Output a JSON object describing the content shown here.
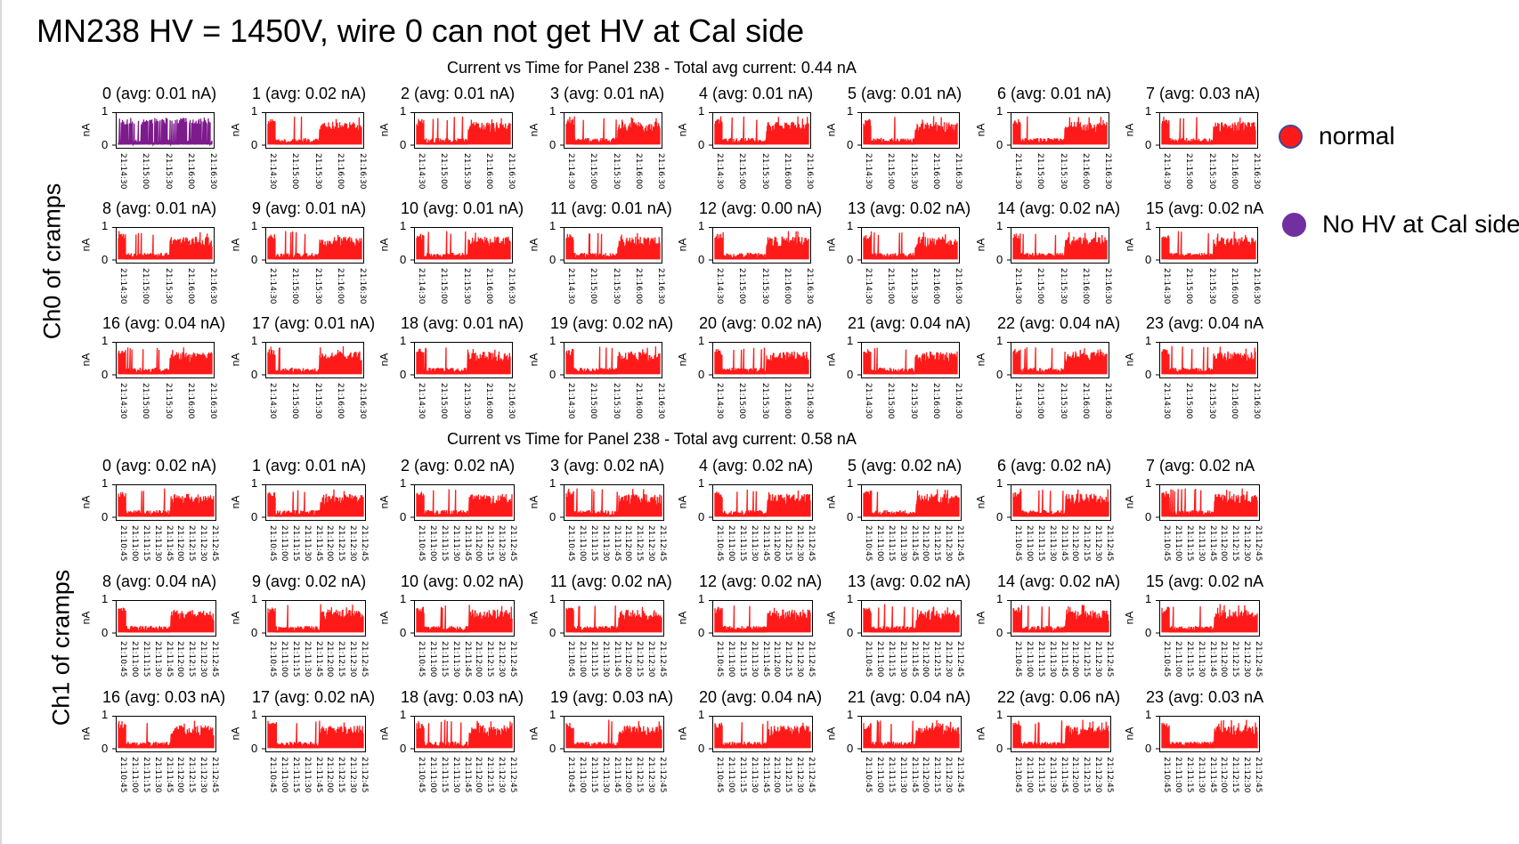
{
  "slide": {
    "title": "MN238 HV = 1450V, wire 0 can not get HV at Cal side"
  },
  "side_labels": {
    "ch0": "Ch0 of cramps",
    "ch1": "Ch1 of cramps"
  },
  "legend": {
    "items": [
      {
        "label": "normal",
        "color": "#ff1a1a",
        "border": "#3a4a9a"
      },
      {
        "label": "No HV at Cal side",
        "color": "#7030a0",
        "border": "#7030a0"
      }
    ]
  },
  "colors": {
    "normal": "#ff1a1a",
    "no_hv": "#7d1a8c"
  },
  "chart_data": [
    {
      "type": "line",
      "title": "Current vs Time for Panel 238 - Total avg current: 0.44 nA",
      "ylabel": "nA",
      "yticks": [
        "0",
        "1"
      ],
      "ylim": [
        0,
        1
      ],
      "xticks": [
        "21:14:30",
        "21:15:00",
        "21:15:30",
        "21:16:00",
        "21:16:30"
      ],
      "subplots": [
        {
          "wire": 0,
          "title": "0 (avg: 0.01 nA)",
          "status": "No HV at Cal side"
        },
        {
          "wire": 1,
          "title": "1 (avg: 0.02 nA)",
          "status": "normal"
        },
        {
          "wire": 2,
          "title": "2 (avg: 0.01 nA)",
          "status": "normal"
        },
        {
          "wire": 3,
          "title": "3 (avg: 0.01 nA)",
          "status": "normal"
        },
        {
          "wire": 4,
          "title": "4 (avg: 0.01 nA)",
          "status": "normal"
        },
        {
          "wire": 5,
          "title": "5 (avg: 0.01 nA)",
          "status": "normal"
        },
        {
          "wire": 6,
          "title": "6 (avg: 0.01 nA)",
          "status": "normal"
        },
        {
          "wire": 7,
          "title": "7 (avg: 0.03 nA)",
          "status": "normal"
        },
        {
          "wire": 8,
          "title": "8 (avg: 0.01 nA)",
          "status": "normal"
        },
        {
          "wire": 9,
          "title": "9 (avg: 0.01 nA)",
          "status": "normal"
        },
        {
          "wire": 10,
          "title": "10 (avg: 0.01 nA)",
          "status": "normal"
        },
        {
          "wire": 11,
          "title": "11 (avg: 0.01 nA)",
          "status": "normal"
        },
        {
          "wire": 12,
          "title": "12 (avg: 0.00 nA)",
          "status": "normal"
        },
        {
          "wire": 13,
          "title": "13 (avg: 0.02 nA)",
          "status": "normal"
        },
        {
          "wire": 14,
          "title": "14 (avg: 0.02 nA)",
          "status": "normal"
        },
        {
          "wire": 15,
          "title": "15 (avg: 0.02 nA",
          "status": "normal"
        },
        {
          "wire": 16,
          "title": "16 (avg: 0.04 nA)",
          "status": "normal"
        },
        {
          "wire": 17,
          "title": "17 (avg: 0.01 nA)",
          "status": "normal"
        },
        {
          "wire": 18,
          "title": "18 (avg: 0.01 nA)",
          "status": "normal"
        },
        {
          "wire": 19,
          "title": "19 (avg: 0.02 nA)",
          "status": "normal"
        },
        {
          "wire": 20,
          "title": "20 (avg: 0.02 nA)",
          "status": "normal"
        },
        {
          "wire": 21,
          "title": "21 (avg: 0.04 nA)",
          "status": "normal"
        },
        {
          "wire": 22,
          "title": "22 (avg: 0.04 nA)",
          "status": "normal"
        },
        {
          "wire": 23,
          "title": "23 (avg: 0.04 nA",
          "status": "normal"
        }
      ]
    },
    {
      "type": "line",
      "title": "Current vs Time for Panel 238 - Total avg current: 0.58 nA",
      "ylabel": "nA",
      "yticks": [
        "0",
        "1"
      ],
      "ylim": [
        0,
        1
      ],
      "xticks": [
        "21:10:45",
        "21:11:00",
        "21:11:15",
        "21:11:30",
        "21:11:45",
        "21:12:00",
        "21:12:15",
        "21:12:30",
        "21:12:45"
      ],
      "subplots": [
        {
          "wire": 0,
          "title": "0 (avg: 0.02 nA)",
          "status": "normal"
        },
        {
          "wire": 1,
          "title": "1 (avg: 0.01 nA)",
          "status": "normal"
        },
        {
          "wire": 2,
          "title": "2 (avg: 0.02 nA)",
          "status": "normal"
        },
        {
          "wire": 3,
          "title": "3 (avg: 0.02 nA)",
          "status": "normal"
        },
        {
          "wire": 4,
          "title": "4 (avg: 0.02 nA)",
          "status": "normal"
        },
        {
          "wire": 5,
          "title": "5 (avg: 0.02 nA)",
          "status": "normal"
        },
        {
          "wire": 6,
          "title": "6 (avg: 0.02 nA)",
          "status": "normal"
        },
        {
          "wire": 7,
          "title": "7 (avg: 0.02 nA",
          "status": "normal"
        },
        {
          "wire": 8,
          "title": "8 (avg: 0.04 nA)",
          "status": "normal"
        },
        {
          "wire": 9,
          "title": "9 (avg: 0.02 nA)",
          "status": "normal"
        },
        {
          "wire": 10,
          "title": "10 (avg: 0.02 nA)",
          "status": "normal"
        },
        {
          "wire": 11,
          "title": "11 (avg: 0.02 nA)",
          "status": "normal"
        },
        {
          "wire": 12,
          "title": "12 (avg: 0.02 nA)",
          "status": "normal"
        },
        {
          "wire": 13,
          "title": "13 (avg: 0.02 nA)",
          "status": "normal"
        },
        {
          "wire": 14,
          "title": "14 (avg: 0.02 nA)",
          "status": "normal"
        },
        {
          "wire": 15,
          "title": "15 (avg: 0.02 nA",
          "status": "normal"
        },
        {
          "wire": 16,
          "title": "16 (avg: 0.03 nA)",
          "status": "normal"
        },
        {
          "wire": 17,
          "title": "17 (avg: 0.02 nA)",
          "status": "normal"
        },
        {
          "wire": 18,
          "title": "18 (avg: 0.03 nA)",
          "status": "normal"
        },
        {
          "wire": 19,
          "title": "19 (avg: 0.03 nA)",
          "status": "normal"
        },
        {
          "wire": 20,
          "title": "20 (avg: 0.04 nA)",
          "status": "normal"
        },
        {
          "wire": 21,
          "title": "21 (avg: 0.04 nA)",
          "status": "normal"
        },
        {
          "wire": 22,
          "title": "22 (avg: 0.06 nA)",
          "status": "normal"
        },
        {
          "wire": 23,
          "title": "23 (avg: 0.03 nA",
          "status": "normal"
        }
      ]
    }
  ]
}
